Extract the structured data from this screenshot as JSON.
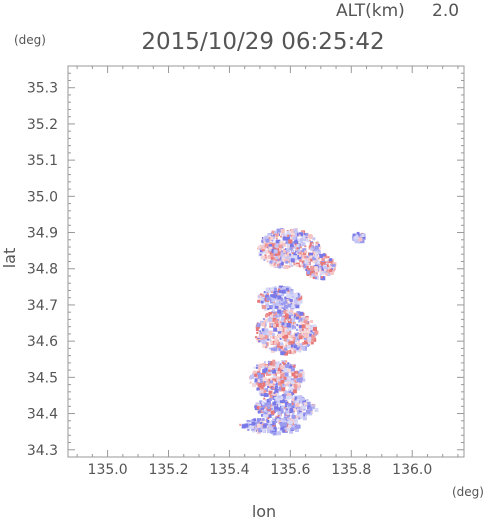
{
  "header": {
    "altitude_label": "ALT(km)",
    "altitude_value": "2.0",
    "datetime": "2015/10/29 06:25:42"
  },
  "chart_data": {
    "type": "heatmap",
    "title": "2015/10/29 06:25:42",
    "xlabel": "lon",
    "ylabel": "lat",
    "x_unit": "(deg)",
    "y_unit": "(deg)",
    "xlim": [
      134.87,
      136.17
    ],
    "ylim": [
      34.28,
      35.36
    ],
    "x_ticks": [
      "135.0",
      "135.2",
      "135.4",
      "135.6",
      "135.8",
      "136.0"
    ],
    "y_ticks": [
      "34.3",
      "34.4",
      "34.5",
      "34.6",
      "34.7",
      "34.8",
      "34.9",
      "35.0",
      "35.1",
      "35.2",
      "35.3"
    ],
    "grid": false,
    "colors": {
      "positive": "#ee8888",
      "negative": "#8888ee",
      "axis": "#999999",
      "text": "#555555"
    },
    "regions": [
      {
        "lon": 135.59,
        "lat": 34.86,
        "rx": 0.1,
        "ry": 0.055,
        "sign": "mixed"
      },
      {
        "lon": 135.69,
        "lat": 34.81,
        "rx": 0.05,
        "ry": 0.035,
        "sign": "positive"
      },
      {
        "lon": 135.82,
        "lat": 34.89,
        "rx": 0.02,
        "ry": 0.012,
        "sign": "negative"
      },
      {
        "lon": 135.56,
        "lat": 34.72,
        "rx": 0.07,
        "ry": 0.035,
        "sign": "negative"
      },
      {
        "lon": 135.58,
        "lat": 34.63,
        "rx": 0.1,
        "ry": 0.06,
        "sign": "mixed"
      },
      {
        "lon": 135.55,
        "lat": 34.5,
        "rx": 0.09,
        "ry": 0.05,
        "sign": "mixed"
      },
      {
        "lon": 135.58,
        "lat": 34.42,
        "rx": 0.1,
        "ry": 0.035,
        "sign": "negative"
      },
      {
        "lon": 135.53,
        "lat": 34.37,
        "rx": 0.1,
        "ry": 0.02,
        "sign": "negative"
      }
    ]
  }
}
